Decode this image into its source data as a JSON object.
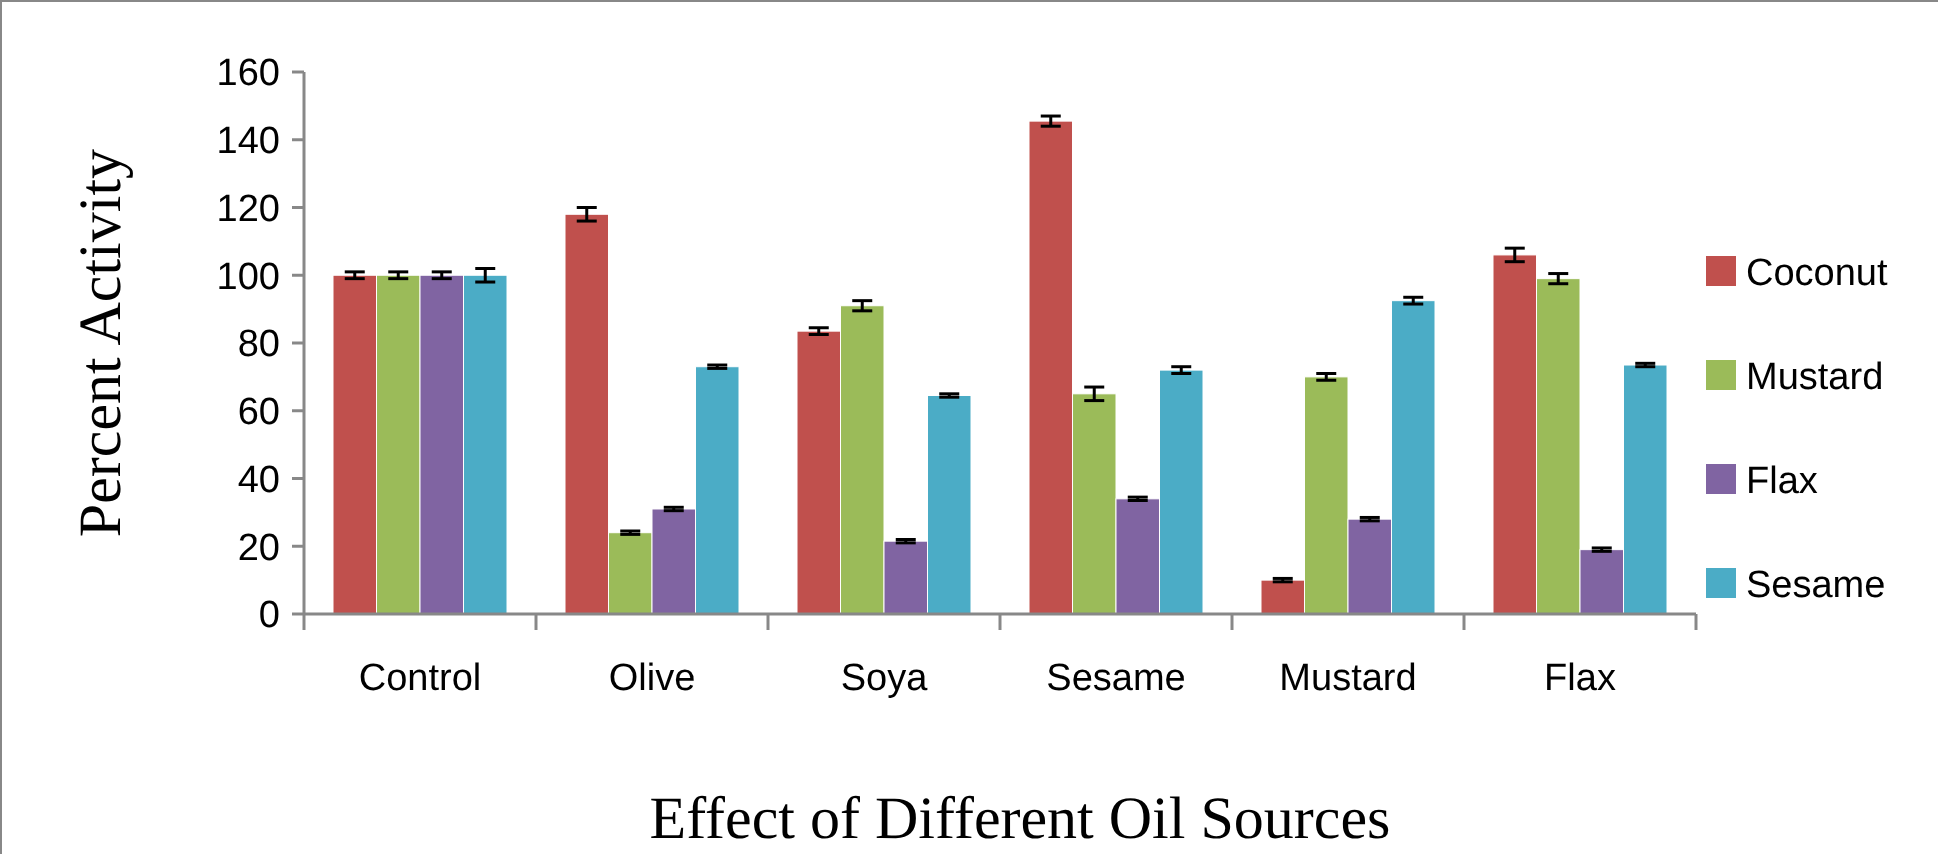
{
  "chart_data": {
    "type": "bar",
    "xlabel": "Effect of Different Oil Sources",
    "ylabel": "Percent Activity",
    "categories": [
      "Control",
      "Olive",
      "Soya",
      "Sesame",
      "Mustard",
      "Flax"
    ],
    "series": [
      {
        "name": "Coconut",
        "color": "#c0504d",
        "values": [
          100,
          118,
          83.5,
          145.5,
          10,
          106
        ],
        "errors": [
          1,
          2,
          1,
          1.5,
          0.5,
          2
        ]
      },
      {
        "name": "Mustard",
        "color": "#9bbb59",
        "values": [
          100,
          24,
          91,
          65,
          70,
          99
        ],
        "errors": [
          1,
          0.5,
          1.5,
          2,
          1,
          1.5
        ]
      },
      {
        "name": "Flax",
        "color": "#8064a2",
        "values": [
          100,
          31,
          21.5,
          34,
          28,
          19
        ],
        "errors": [
          1,
          0.5,
          0.5,
          0.5,
          0.5,
          0.5
        ]
      },
      {
        "name": "Sesame",
        "color": "#4bacc6",
        "values": [
          100,
          73,
          64.5,
          72,
          92.5,
          73.5
        ],
        "errors": [
          2,
          0.5,
          0.5,
          1,
          1,
          0.5
        ]
      }
    ],
    "ylim": [
      0,
      160
    ],
    "yticks": [
      0,
      20,
      40,
      60,
      80,
      100,
      120,
      140,
      160
    ],
    "grid": false,
    "legend": "right"
  }
}
